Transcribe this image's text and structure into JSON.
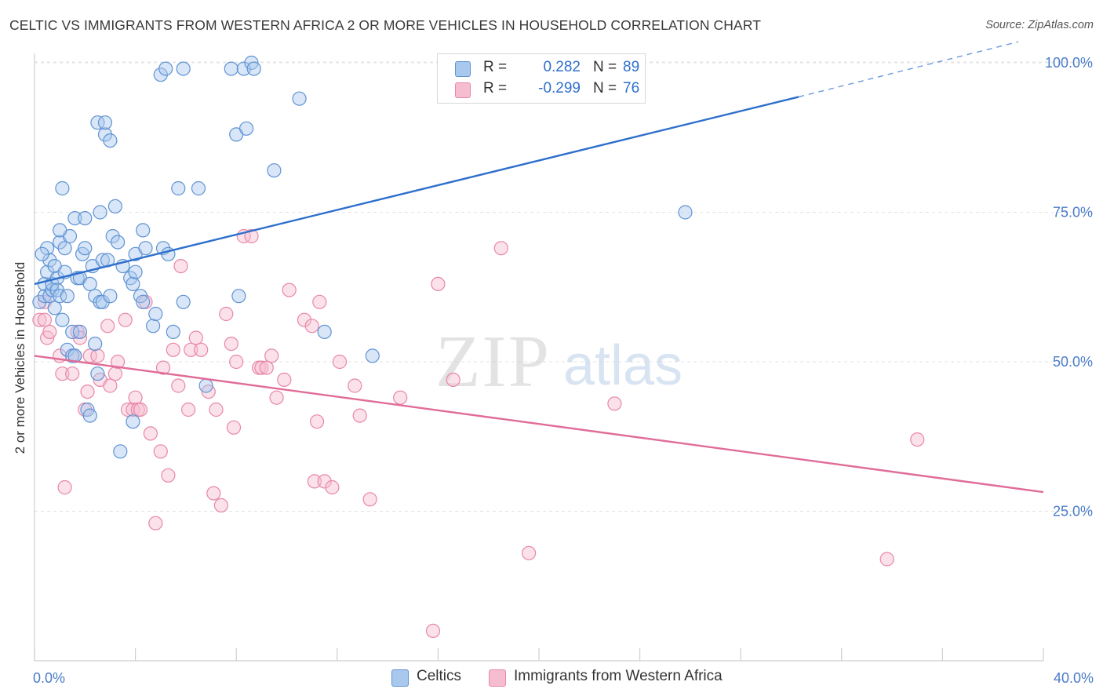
{
  "header": {
    "title": "CELTIC VS IMMIGRANTS FROM WESTERN AFRICA 2 OR MORE VEHICLES IN HOUSEHOLD CORRELATION CHART",
    "source": "Source: ZipAtlas.com"
  },
  "watermark": {
    "zip": "ZIP",
    "atlas": "atlas"
  },
  "legend": {
    "rows": [
      {
        "r_label": "R =",
        "r_value": "0.282",
        "n_label": "N =",
        "n_value": "89"
      },
      {
        "r_label": "R =",
        "r_value": "-0.299",
        "n_label": "N =",
        "n_value": "76"
      }
    ]
  },
  "bottom_legend": {
    "series1": "Celtics",
    "series2": "Immigrants from Western Africa"
  },
  "colors": {
    "celtics_fill": "#a9c8ee",
    "celtics_stroke": "#5f93d3",
    "celtics_line": "#2e6fcc",
    "africa_fill": "#f6bcd0",
    "africa_stroke": "#e887a8",
    "africa_line": "#e06c98",
    "tick_label": "#4a7cc9",
    "grid": "#e3e3e3"
  },
  "chart_data": {
    "type": "scatter",
    "ylabel": "2 or more Vehicles in Household",
    "xlabel": "",
    "xlim": [
      0,
      40
    ],
    "ylim": [
      0,
      104
    ],
    "x_tick_labels": [
      {
        "value": 0,
        "label": "0.0%"
      },
      {
        "value": 40,
        "label": "40.0%"
      }
    ],
    "y_tick_labels": [
      {
        "value": 25,
        "label": "25.0%"
      },
      {
        "value": 50,
        "label": "50.0%"
      },
      {
        "value": 75,
        "label": "75.0%"
      },
      {
        "value": 100,
        "label": "100.0%"
      }
    ],
    "grid": true,
    "legend_position": "top-center",
    "series": [
      {
        "name": "Celtics",
        "R": 0.282,
        "N": 89,
        "trend": {
          "x0": 0,
          "y0": 63.0,
          "x1": 30.3,
          "y1": 94.3,
          "dashed_to_x": 39.0,
          "dashed_to_y": 103.5
        },
        "points": [
          [
            0.2,
            60
          ],
          [
            0.4,
            61
          ],
          [
            0.4,
            63
          ],
          [
            0.5,
            65
          ],
          [
            0.5,
            69
          ],
          [
            0.6,
            61
          ],
          [
            0.6,
            67
          ],
          [
            0.7,
            62
          ],
          [
            0.7,
            63
          ],
          [
            0.8,
            59
          ],
          [
            0.8,
            66
          ],
          [
            0.9,
            64
          ],
          [
            0.9,
            62
          ],
          [
            1.0,
            61
          ],
          [
            1.0,
            70
          ],
          [
            1.1,
            57
          ],
          [
            1.1,
            79
          ],
          [
            1.2,
            65
          ],
          [
            1.2,
            69
          ],
          [
            1.3,
            61
          ],
          [
            1.3,
            52
          ],
          [
            1.4,
            71
          ],
          [
            1.5,
            55
          ],
          [
            1.5,
            51
          ],
          [
            1.6,
            74
          ],
          [
            1.6,
            51
          ],
          [
            1.7,
            64
          ],
          [
            1.8,
            64
          ],
          [
            1.8,
            55
          ],
          [
            1.9,
            68
          ],
          [
            2.0,
            74
          ],
          [
            2.0,
            69
          ],
          [
            2.1,
            42
          ],
          [
            2.2,
            63
          ],
          [
            2.2,
            41
          ],
          [
            2.3,
            66
          ],
          [
            2.4,
            61
          ],
          [
            2.4,
            53
          ],
          [
            2.5,
            90
          ],
          [
            2.5,
            48
          ],
          [
            2.6,
            60
          ],
          [
            2.6,
            75
          ],
          [
            2.7,
            67
          ],
          [
            2.7,
            60
          ],
          [
            2.8,
            88
          ],
          [
            2.8,
            90
          ],
          [
            2.9,
            67
          ],
          [
            3.0,
            61
          ],
          [
            3.0,
            87
          ],
          [
            3.1,
            71
          ],
          [
            3.2,
            76
          ],
          [
            3.3,
            70
          ],
          [
            3.4,
            35
          ],
          [
            3.5,
            66
          ],
          [
            3.8,
            64
          ],
          [
            3.9,
            40
          ],
          [
            3.9,
            63
          ],
          [
            4.0,
            68
          ],
          [
            4.0,
            65
          ],
          [
            4.2,
            61
          ],
          [
            4.3,
            60
          ],
          [
            4.3,
            72
          ],
          [
            4.4,
            69
          ],
          [
            4.7,
            56
          ],
          [
            4.8,
            58
          ],
          [
            5.0,
            98
          ],
          [
            5.1,
            69
          ],
          [
            5.2,
            99
          ],
          [
            5.3,
            68
          ],
          [
            5.5,
            55
          ],
          [
            5.7,
            79
          ],
          [
            5.9,
            99
          ],
          [
            5.9,
            60
          ],
          [
            6.5,
            79
          ],
          [
            6.8,
            46
          ],
          [
            7.8,
            99
          ],
          [
            8.0,
            88
          ],
          [
            8.1,
            61
          ],
          [
            8.3,
            99
          ],
          [
            8.4,
            89
          ],
          [
            8.6,
            100
          ],
          [
            8.7,
            99
          ],
          [
            9.5,
            82
          ],
          [
            10.5,
            94
          ],
          [
            11.5,
            55
          ],
          [
            13.4,
            51
          ],
          [
            25.8,
            75
          ],
          [
            0.3,
            68
          ],
          [
            1.0,
            72
          ]
        ]
      },
      {
        "name": "Immigrants from Western Africa",
        "R": -0.299,
        "N": 76,
        "trend": {
          "x0": 0,
          "y0": 51.0,
          "x1": 40,
          "y1": 28.2
        },
        "points": [
          [
            0.2,
            57
          ],
          [
            0.4,
            57
          ],
          [
            0.4,
            60
          ],
          [
            0.5,
            54
          ],
          [
            0.6,
            55
          ],
          [
            1.0,
            51
          ],
          [
            1.1,
            48
          ],
          [
            1.2,
            29
          ],
          [
            1.5,
            48
          ],
          [
            1.6,
            51
          ],
          [
            1.7,
            55
          ],
          [
            1.8,
            54
          ],
          [
            2.0,
            42
          ],
          [
            2.1,
            45
          ],
          [
            2.2,
            51
          ],
          [
            2.5,
            51
          ],
          [
            2.6,
            47
          ],
          [
            2.9,
            56
          ],
          [
            3.0,
            46
          ],
          [
            3.2,
            48
          ],
          [
            3.3,
            50
          ],
          [
            3.6,
            57
          ],
          [
            3.7,
            42
          ],
          [
            3.9,
            42
          ],
          [
            4.0,
            44
          ],
          [
            4.1,
            42
          ],
          [
            4.2,
            42
          ],
          [
            4.4,
            60
          ],
          [
            4.6,
            38
          ],
          [
            4.8,
            23
          ],
          [
            5.0,
            35
          ],
          [
            5.1,
            49
          ],
          [
            5.3,
            31
          ],
          [
            5.5,
            52
          ],
          [
            5.7,
            46
          ],
          [
            5.8,
            66
          ],
          [
            6.1,
            42
          ],
          [
            6.2,
            52
          ],
          [
            6.4,
            54
          ],
          [
            6.6,
            52
          ],
          [
            6.9,
            45
          ],
          [
            7.1,
            28
          ],
          [
            7.2,
            42
          ],
          [
            7.4,
            26
          ],
          [
            7.6,
            58
          ],
          [
            7.8,
            53
          ],
          [
            7.9,
            39
          ],
          [
            8.0,
            50
          ],
          [
            8.3,
            71
          ],
          [
            8.6,
            71
          ],
          [
            8.9,
            49
          ],
          [
            9.0,
            49
          ],
          [
            9.2,
            49
          ],
          [
            9.4,
            51
          ],
          [
            9.6,
            44
          ],
          [
            9.9,
            47
          ],
          [
            10.1,
            62
          ],
          [
            10.7,
            57
          ],
          [
            11.0,
            56
          ],
          [
            11.1,
            30
          ],
          [
            11.2,
            40
          ],
          [
            11.3,
            60
          ],
          [
            11.5,
            30
          ],
          [
            11.8,
            29
          ],
          [
            12.1,
            50
          ],
          [
            12.7,
            46
          ],
          [
            12.9,
            41
          ],
          [
            13.3,
            27
          ],
          [
            14.5,
            44
          ],
          [
            15.8,
            5
          ],
          [
            16.0,
            63
          ],
          [
            16.6,
            47
          ],
          [
            18.5,
            69
          ],
          [
            19.6,
            18
          ],
          [
            23.0,
            43
          ],
          [
            33.8,
            17
          ],
          [
            35.0,
            37
          ]
        ]
      }
    ]
  }
}
